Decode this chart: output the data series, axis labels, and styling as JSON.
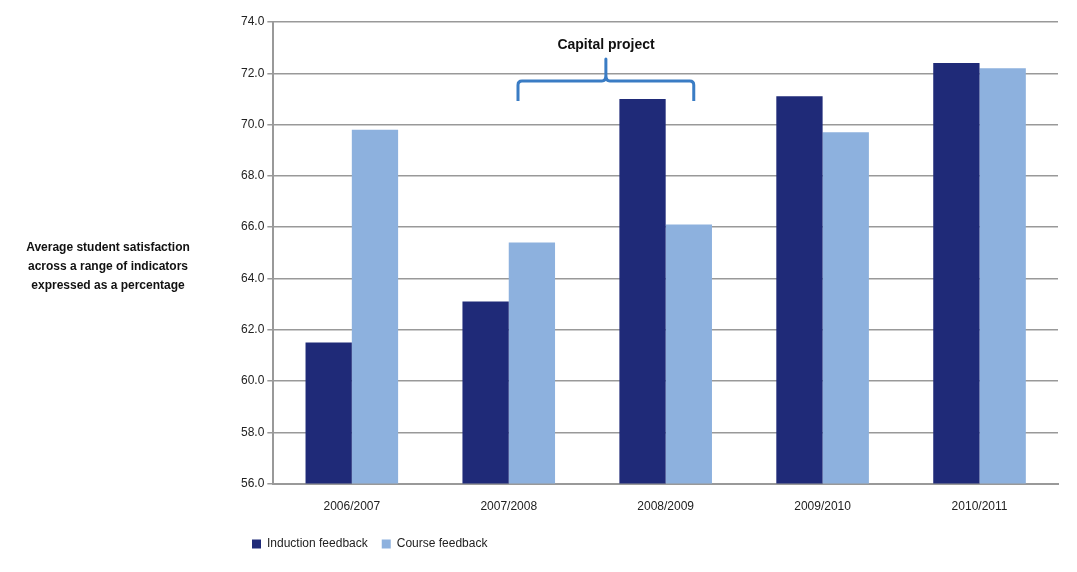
{
  "chart_data": {
    "type": "bar",
    "ylabel": "Average student satisfaction across a range of indicators expressed as a percentage",
    "categories": [
      "2006/2007",
      "2007/2008",
      "2008/2009",
      "2009/2010",
      "2010/2011"
    ],
    "series": [
      {
        "name": "Induction feedback",
        "color": "#1f2a78",
        "values": [
          61.5,
          63.1,
          71.0,
          71.1,
          72.4
        ]
      },
      {
        "name": "Course feedback",
        "color": "#8db1de",
        "values": [
          69.8,
          65.4,
          66.1,
          69.7,
          72.2
        ]
      }
    ],
    "ylim": [
      56,
      74
    ],
    "yticks": [
      {
        "value": 56,
        "label": "56.0"
      },
      {
        "value": 58,
        "label": "58.0"
      },
      {
        "value": 60,
        "label": "60.0"
      },
      {
        "value": 62,
        "label": "62.0"
      },
      {
        "value": 64,
        "label": "64.0"
      },
      {
        "value": 66,
        "label": "66.0"
      },
      {
        "value": 68,
        "label": "68.0"
      },
      {
        "value": 70,
        "label": "70.0"
      },
      {
        "value": 72,
        "label": "72.0"
      },
      {
        "value": 74,
        "label": "74.0"
      }
    ],
    "grid": "y",
    "legend": "bottom left",
    "annotations": [
      "Capital project"
    ]
  }
}
